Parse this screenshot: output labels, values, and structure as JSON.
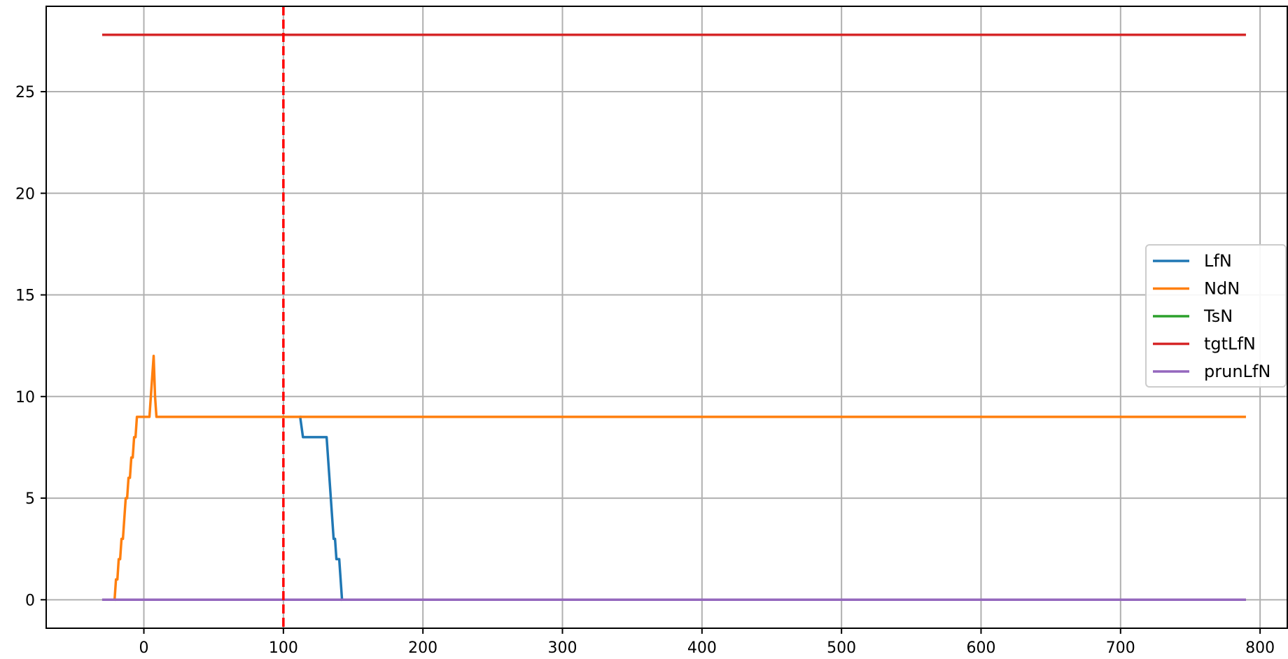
{
  "chart_data": {
    "type": "line",
    "title": "",
    "xlabel": "",
    "ylabel": "",
    "xlim": [
      -70,
      820
    ],
    "ylim": [
      -1.4,
      29.2
    ],
    "grid": true,
    "legend_placement": "center-right",
    "x_ticks": [
      0,
      100,
      200,
      300,
      400,
      500,
      600,
      700,
      800
    ],
    "y_ticks": [
      0,
      5,
      10,
      15,
      20,
      25
    ],
    "x_tick_labels": [
      "0",
      "100",
      "200",
      "300",
      "400",
      "500",
      "600",
      "700",
      "800"
    ],
    "y_tick_labels": [
      "0",
      "5",
      "10",
      "15",
      "20",
      "25"
    ],
    "vline": {
      "x": 100,
      "color": "#ff0000",
      "style": "dashed"
    },
    "series": [
      {
        "name": "LfN",
        "color": "#1f77b4",
        "x": [
          112,
          114,
          116,
          120,
          124,
          128,
          131,
          133,
          135,
          136,
          137,
          138,
          139,
          140,
          141,
          142
        ],
        "y": [
          9,
          8,
          8,
          8,
          8,
          8,
          8,
          6,
          4,
          3,
          3,
          2,
          2,
          2,
          1,
          0
        ]
      },
      {
        "name": "NdN",
        "color": "#ff7f0e",
        "x": [
          -21,
          -20,
          -19,
          -18,
          -17,
          -16,
          -15,
          -14,
          -13,
          -12,
          -11,
          -10,
          -9,
          -8,
          -7,
          -6,
          -5,
          -4,
          -3,
          -2,
          0,
          2,
          4,
          5,
          6,
          7,
          8,
          9,
          10,
          11,
          789
        ],
        "y": [
          0,
          1,
          1,
          2,
          2,
          3,
          3,
          4,
          5,
          5,
          6,
          6,
          7,
          7,
          8,
          8,
          9,
          9,
          9,
          9,
          9,
          9,
          9,
          10,
          11,
          12,
          10,
          9,
          9,
          9,
          9
        ]
      },
      {
        "name": "TsN",
        "color": "#2ca02c",
        "x": [
          -29,
          789
        ],
        "y": [
          0,
          0
        ]
      },
      {
        "name": "tgtLfN",
        "color": "#d62728",
        "x": [
          -29,
          789
        ],
        "y": [
          27.8,
          27.8
        ]
      },
      {
        "name": "prunLfN",
        "color": "#9467bd",
        "x": [
          -29,
          789
        ],
        "y": [
          0,
          0
        ]
      }
    ]
  }
}
